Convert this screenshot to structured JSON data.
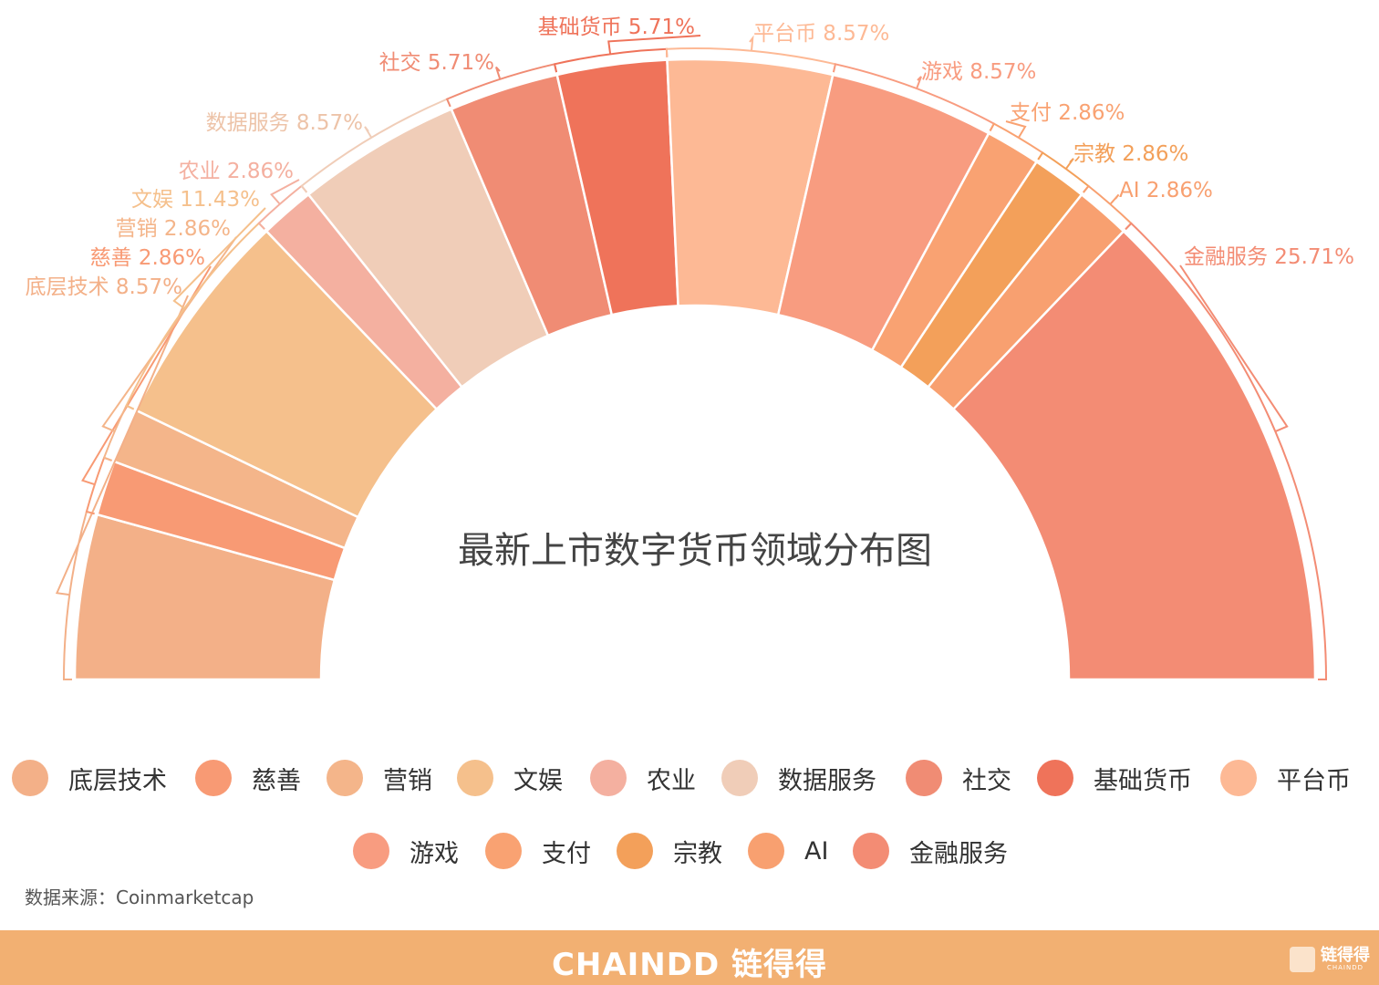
{
  "chart_data": {
    "type": "pie",
    "subtype": "half-donut",
    "title": "最新上市数字货币领域分布图",
    "categories": [
      "底层技术",
      "慈善",
      "营销",
      "文娱",
      "农业",
      "数据服务",
      "社交",
      "基础货币",
      "平台币",
      "游戏",
      "支付",
      "宗教",
      "AI",
      "金融服务"
    ],
    "values": [
      8.57,
      2.86,
      2.86,
      11.43,
      2.86,
      8.57,
      5.71,
      5.71,
      8.57,
      8.57,
      2.86,
      2.86,
      2.86,
      25.71
    ],
    "labels": [
      "底层技术 8.57%",
      "慈善 2.86%",
      "营销 2.86%",
      "文娱 11.43%",
      "农业 2.86%",
      "数据服务 8.57%",
      "社交 5.71%",
      "基础货币 5.71%",
      "平台币 8.57%",
      "游戏 8.57%",
      "支付 2.86%",
      "宗教 2.86%",
      "AI 2.86%",
      "金融服务 25.71%"
    ],
    "colors": [
      "#F3B088",
      "#F89A74",
      "#F4B58A",
      "#F5C08C",
      "#F4B0A0",
      "#F0CDB8",
      "#F08C74",
      "#EF735A",
      "#FDB995",
      "#F89C80",
      "#F9A272",
      "#F3A05A",
      "#F8A070",
      "#F38C74"
    ],
    "legend_position": "bottom",
    "unit": "%"
  },
  "source": "数据来源：Coinmarketcap",
  "footer": {
    "brand": "CHAINDD 链得得",
    "badge": "链得得",
    "badge_sub": "CHAINDD"
  }
}
